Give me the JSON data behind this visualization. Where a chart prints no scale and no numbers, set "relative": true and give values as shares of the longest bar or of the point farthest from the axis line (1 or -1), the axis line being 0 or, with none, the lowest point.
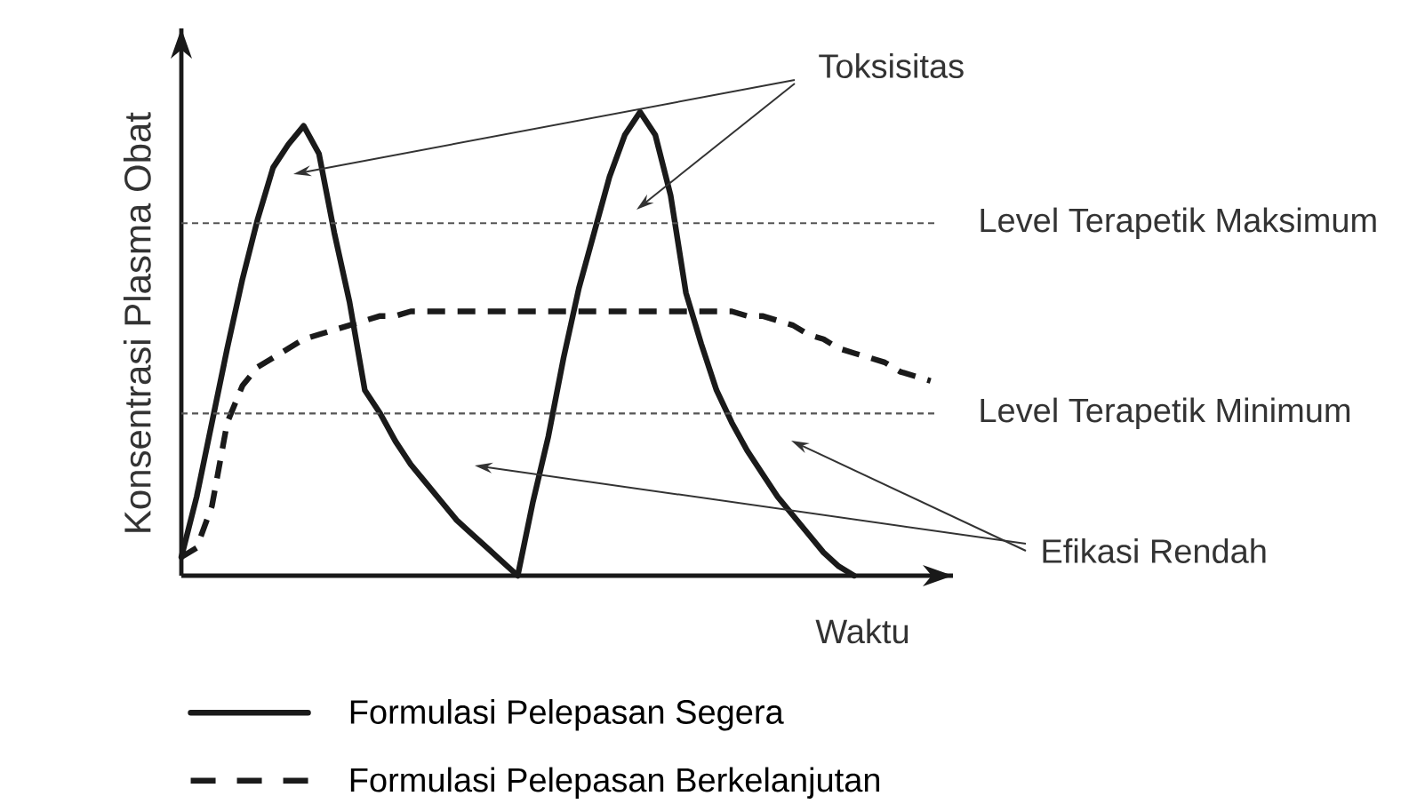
{
  "chart_data": {
    "type": "line",
    "relative": true,
    "xlabel": "Waktu",
    "ylabel": "Konsentrasi Plasma Obat",
    "categories": [
      null,
      null,
      null,
      null,
      null,
      null,
      null,
      null,
      null,
      null,
      null,
      null,
      null,
      null,
      null,
      null,
      null,
      null,
      null,
      null,
      null,
      null,
      null,
      null,
      null,
      null,
      null,
      null,
      null,
      null,
      null,
      null,
      null,
      null,
      null,
      null,
      null,
      null,
      null,
      null,
      null,
      null,
      null,
      null,
      null,
      null,
      null,
      null,
      null,
      null,
      null
    ],
    "series": [
      {
        "name": "Formulasi Pelepasan Segera",
        "color": "#1a1a1a",
        "line_style": "solid",
        "values": [
          0.04,
          0.17,
          0.33,
          0.49,
          0.64,
          0.77,
          0.88,
          0.93,
          0.97,
          0.91,
          0.74,
          0.59,
          0.4,
          0.35,
          0.29,
          0.24,
          0.2,
          0.16,
          0.12,
          0.09,
          0.06,
          0.03,
          0,
          0.16,
          0.3,
          0.47,
          0.62,
          0.74,
          0.86,
          0.95,
          1,
          0.95,
          0.82,
          0.61,
          0.5,
          0.4,
          0.33,
          0.27,
          0.22,
          0.17,
          0.13,
          0.09,
          0.05,
          0.02,
          0,
          null,
          null,
          null,
          null,
          null,
          null
        ]
      },
      {
        "name": "Formulasi Pelepasan Berkelanjutan",
        "color": "#1a1a1a",
        "line_style": "dashed",
        "values": [
          0.04,
          0.06,
          0.15,
          0.33,
          0.41,
          0.45,
          0.47,
          0.49,
          0.51,
          0.52,
          0.53,
          0.54,
          0.55,
          0.56,
          0.56,
          0.57,
          0.57,
          0.57,
          0.57,
          0.57,
          0.57,
          0.57,
          0.57,
          0.57,
          0.57,
          0.57,
          0.57,
          0.57,
          0.57,
          0.57,
          0.57,
          0.57,
          0.57,
          0.57,
          0.57,
          0.57,
          0.57,
          0.56,
          0.56,
          0.55,
          0.54,
          0.52,
          0.51,
          0.49,
          0.48,
          0.47,
          0.46,
          0.44,
          0.43,
          0.42,
          null
        ]
      }
    ],
    "ref_lines": [
      {
        "axis": "y",
        "value": 0.76,
        "label": "Level Terapetik Maksimum",
        "color": "#555555",
        "line_style": "dashed"
      },
      {
        "axis": "y",
        "value": 0.35,
        "label": "Level Terapetik Minimum",
        "color": "#555555",
        "line_style": "dashed"
      }
    ],
    "annotations": [
      "Toksisitas",
      "Efikasi Rendah"
    ],
    "legend": "bottom left",
    "marker": "none"
  }
}
